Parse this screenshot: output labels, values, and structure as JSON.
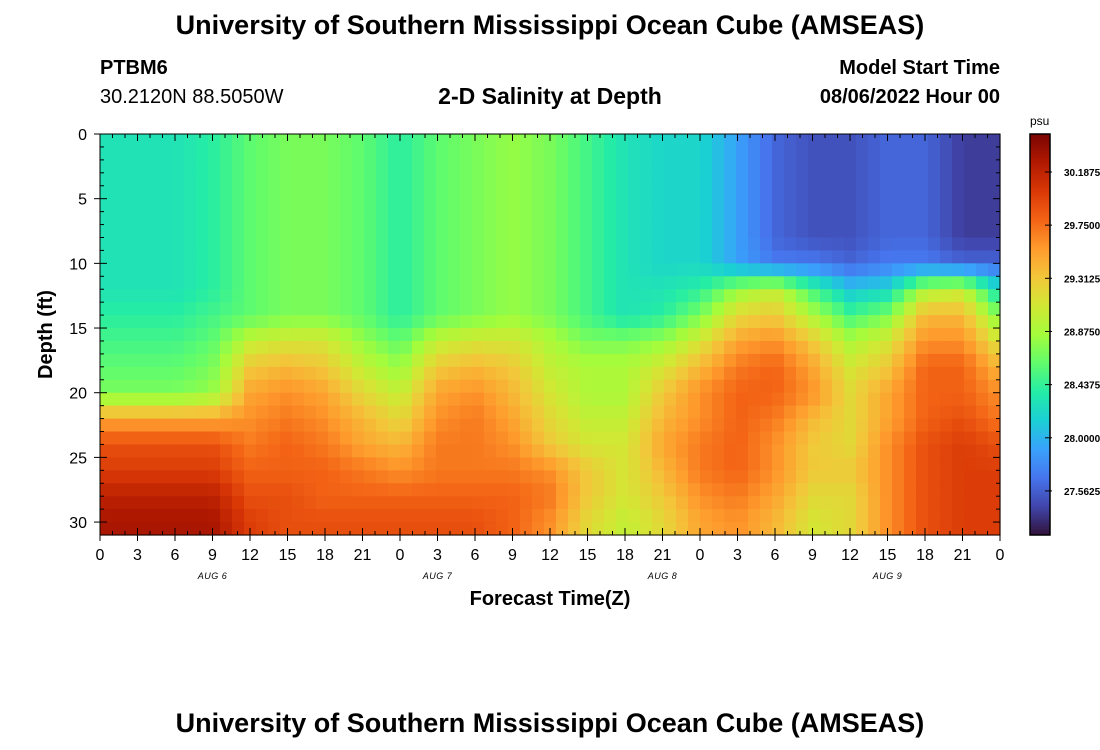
{
  "header": {
    "title": "University of Southern Mississippi Ocean Cube (AMSEAS)",
    "station_id": "PTBM6",
    "station_coords": "30.2120N  88.5050W",
    "subtitle": "2-D Salinity at Depth",
    "model_start_label": "Model Start Time",
    "model_start_value": "08/06/2022 Hour 00"
  },
  "footer": {
    "title": "University of Southern Mississippi Ocean Cube (AMSEAS)"
  },
  "chart_data": {
    "type": "heatmap",
    "title": "2-D Salinity at Depth",
    "xlabel": "Forecast Time(Z)",
    "ylabel": "Depth (ft)",
    "x_unit": "forecast hour",
    "xlim": [
      0,
      72
    ],
    "ylim": [
      0,
      31
    ],
    "x_ticks": [
      0,
      3,
      6,
      9,
      12,
      15,
      18,
      21,
      24,
      27,
      30,
      33,
      36,
      39,
      42,
      45,
      48,
      51,
      54,
      57,
      60,
      63,
      66,
      69,
      72
    ],
    "x_tick_labels": [
      "0",
      "3",
      "6",
      "9",
      "12",
      "15",
      "18",
      "21",
      "0",
      "3",
      "6",
      "9",
      "12",
      "15",
      "18",
      "21",
      "0",
      "3",
      "6",
      "9",
      "12",
      "15",
      "18",
      "21",
      "0"
    ],
    "day_labels": [
      {
        "hour": 9,
        "label": "AUG 6"
      },
      {
        "hour": 27,
        "label": "AUG 7"
      },
      {
        "hour": 45,
        "label": "AUG 8"
      },
      {
        "hour": 63,
        "label": "AUG 9"
      }
    ],
    "y_ticks": [
      0,
      5,
      10,
      15,
      20,
      25,
      30
    ],
    "y_tick_labels": [
      "0",
      "5",
      "10",
      "15",
      "20",
      "25",
      "30"
    ],
    "colorbar": {
      "unit": "psu",
      "range": [
        27.2,
        30.5
      ],
      "tick_values": [
        30.1875,
        29.75,
        29.3125,
        28.875,
        28.4375,
        28.0,
        27.5625
      ],
      "tick_labels": [
        "30.1875",
        "29.7500",
        "29.3125",
        "28.8750",
        "28.4375",
        "28.0000",
        "27.5625"
      ],
      "colormap": [
        "#30123b",
        "#4145ab",
        "#4675ed",
        "#39a2fc",
        "#1bcfd4",
        "#24eca6",
        "#61fc6c",
        "#a4fc3b",
        "#d1e834",
        "#f3c63a",
        "#fe9b2d",
        "#f36315",
        "#d93806",
        "#b11901",
        "#7a0402"
      ]
    },
    "depth_levels": [
      0,
      2,
      4,
      6,
      8,
      10,
      12,
      14,
      16,
      18,
      20,
      22,
      24,
      26,
      28,
      30
    ],
    "time_hours": [
      0,
      3,
      6,
      9,
      12,
      15,
      18,
      21,
      24,
      27,
      30,
      33,
      36,
      39,
      42,
      45,
      48,
      51,
      54,
      57,
      60,
      63,
      66,
      69,
      72
    ],
    "values": [
      [
        28.3,
        28.3,
        28.3,
        28.4,
        28.6,
        28.7,
        28.7,
        28.6,
        28.4,
        28.6,
        28.7,
        28.8,
        28.7,
        28.5,
        28.3,
        28.2,
        28.2,
        27.9,
        27.6,
        27.5,
        27.5,
        27.6,
        27.6,
        27.4,
        27.4
      ],
      [
        28.3,
        28.3,
        28.3,
        28.4,
        28.6,
        28.7,
        28.7,
        28.6,
        28.4,
        28.6,
        28.7,
        28.8,
        28.7,
        28.5,
        28.3,
        28.2,
        28.2,
        27.9,
        27.6,
        27.5,
        27.5,
        27.6,
        27.6,
        27.4,
        27.4
      ],
      [
        28.3,
        28.3,
        28.3,
        28.4,
        28.6,
        28.7,
        28.7,
        28.6,
        28.4,
        28.6,
        28.7,
        28.8,
        28.7,
        28.5,
        28.3,
        28.2,
        28.2,
        27.9,
        27.6,
        27.5,
        27.5,
        27.6,
        27.6,
        27.4,
        27.4
      ],
      [
        28.3,
        28.3,
        28.3,
        28.4,
        28.6,
        28.7,
        28.7,
        28.6,
        28.4,
        28.6,
        28.7,
        28.8,
        28.7,
        28.5,
        28.3,
        28.2,
        28.2,
        27.9,
        27.6,
        27.5,
        27.5,
        27.6,
        27.6,
        27.4,
        27.4
      ],
      [
        28.3,
        28.3,
        28.3,
        28.4,
        28.6,
        28.7,
        28.7,
        28.6,
        28.4,
        28.6,
        28.7,
        28.8,
        28.7,
        28.5,
        28.3,
        28.2,
        28.2,
        27.9,
        27.6,
        27.5,
        27.5,
        27.6,
        27.6,
        27.4,
        27.4
      ],
      [
        28.3,
        28.3,
        28.3,
        28.4,
        28.6,
        28.7,
        28.7,
        28.6,
        28.4,
        28.6,
        28.7,
        28.8,
        28.7,
        28.5,
        28.3,
        28.2,
        28.2,
        27.9,
        27.7,
        27.7,
        27.6,
        27.7,
        27.7,
        27.6,
        27.6
      ],
      [
        28.3,
        28.3,
        28.3,
        28.4,
        28.6,
        28.7,
        28.7,
        28.6,
        28.4,
        28.6,
        28.7,
        28.8,
        28.7,
        28.5,
        28.3,
        28.3,
        28.4,
        28.8,
        29.0,
        28.5,
        28.1,
        28.2,
        28.9,
        29.0,
        28.2
      ],
      [
        28.4,
        28.4,
        28.4,
        28.5,
        28.6,
        28.7,
        28.7,
        28.6,
        28.4,
        28.6,
        28.7,
        28.8,
        28.7,
        28.5,
        28.3,
        28.4,
        28.7,
        29.2,
        29.3,
        28.9,
        28.5,
        28.7,
        29.4,
        29.4,
        28.7
      ],
      [
        28.5,
        28.5,
        28.5,
        28.6,
        29.0,
        29.1,
        29.1,
        28.8,
        28.6,
        29.0,
        29.1,
        29.1,
        28.9,
        28.7,
        28.7,
        28.8,
        29.1,
        29.5,
        29.6,
        29.3,
        28.9,
        29.1,
        29.6,
        29.6,
        29.1
      ],
      [
        28.6,
        28.6,
        28.6,
        28.7,
        29.3,
        29.4,
        29.3,
        29.0,
        28.8,
        29.3,
        29.4,
        29.3,
        29.0,
        28.9,
        28.9,
        29.1,
        29.4,
        29.7,
        29.8,
        29.5,
        29.1,
        29.3,
        29.8,
        29.8,
        29.4
      ],
      [
        28.7,
        28.7,
        28.7,
        28.8,
        29.5,
        29.6,
        29.5,
        29.2,
        29.0,
        29.5,
        29.6,
        29.4,
        29.1,
        28.9,
        28.9,
        29.3,
        29.6,
        29.8,
        29.8,
        29.6,
        29.2,
        29.5,
        29.8,
        29.8,
        29.6
      ],
      [
        29.5,
        29.5,
        29.5,
        29.5,
        29.6,
        29.7,
        29.6,
        29.4,
        29.2,
        29.6,
        29.7,
        29.5,
        29.2,
        29.0,
        29.0,
        29.4,
        29.6,
        29.8,
        29.7,
        29.4,
        29.2,
        29.5,
        29.8,
        29.9,
        29.7
      ],
      [
        29.9,
        29.9,
        29.9,
        29.9,
        29.7,
        29.8,
        29.7,
        29.5,
        29.4,
        29.7,
        29.7,
        29.6,
        29.3,
        29.1,
        29.1,
        29.5,
        29.7,
        29.8,
        29.6,
        29.3,
        29.2,
        29.6,
        29.9,
        30.0,
        29.9
      ],
      [
        30.0,
        30.0,
        30.0,
        30.0,
        29.8,
        29.8,
        29.8,
        29.7,
        29.6,
        29.7,
        29.7,
        29.7,
        29.6,
        29.3,
        29.1,
        29.4,
        29.7,
        29.8,
        29.6,
        29.3,
        29.3,
        29.6,
        29.9,
        30.0,
        30.0
      ],
      [
        30.2,
        30.2,
        30.2,
        30.2,
        29.9,
        29.9,
        29.8,
        29.8,
        29.8,
        29.8,
        29.8,
        29.8,
        29.7,
        29.3,
        29.1,
        29.3,
        29.6,
        29.7,
        29.5,
        29.2,
        29.2,
        29.6,
        29.9,
        30.0,
        30.0
      ],
      [
        30.3,
        30.3,
        30.3,
        30.3,
        30.0,
        29.9,
        29.9,
        29.9,
        29.9,
        29.9,
        29.9,
        29.8,
        29.6,
        29.2,
        29.0,
        29.2,
        29.5,
        29.6,
        29.4,
        29.1,
        29.2,
        29.6,
        29.9,
        30.0,
        30.0
      ]
    ]
  }
}
